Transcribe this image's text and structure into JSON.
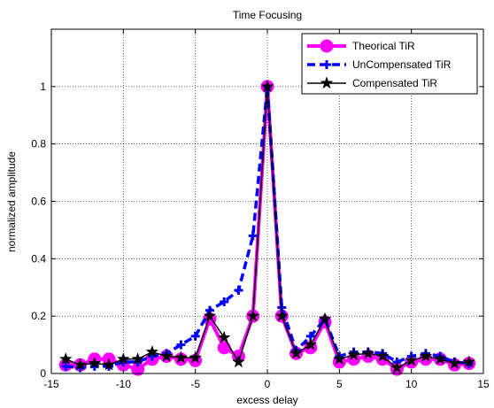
{
  "chart_data": {
    "type": "line",
    "title": "Time Focusing",
    "xlabel": "excess delay",
    "ylabel": "normalized amplitude",
    "xlim": [
      -15,
      15
    ],
    "ylim": [
      0,
      1.2
    ],
    "xticks": [
      -15,
      -10,
      -5,
      0,
      5,
      10,
      15
    ],
    "yticks": [
      0,
      0.2,
      0.4,
      0.6,
      0.8,
      1
    ],
    "grid": true,
    "legend_position": "top-right",
    "x": [
      -14,
      -13,
      -12,
      -11,
      -10,
      -9,
      -8,
      -7,
      -6,
      -5,
      -4,
      -3,
      -2,
      -1,
      0,
      1,
      2,
      3,
      4,
      5,
      6,
      7,
      8,
      9,
      10,
      11,
      12,
      13,
      14
    ],
    "series": [
      {
        "name": "Theorical TiR",
        "color": "#ff00ff",
        "style": "solid",
        "marker": "circle",
        "values": [
          0.03,
          0.03,
          0.05,
          0.05,
          0.03,
          0.015,
          0.05,
          0.06,
          0.05,
          0.045,
          0.19,
          0.09,
          0.06,
          0.2,
          1.0,
          0.2,
          0.07,
          0.09,
          0.18,
          0.04,
          0.05,
          0.06,
          0.05,
          0.015,
          0.04,
          0.05,
          0.05,
          0.03,
          0.035
        ]
      },
      {
        "name": "UnCompensated TiR",
        "color": "#0000ff",
        "style": "dashed",
        "marker": "plus",
        "values": [
          0.025,
          0.02,
          0.025,
          0.025,
          0.04,
          0.04,
          0.06,
          0.07,
          0.1,
          0.13,
          0.22,
          0.25,
          0.29,
          0.48,
          1.0,
          0.23,
          0.08,
          0.13,
          0.19,
          0.06,
          0.075,
          0.075,
          0.07,
          0.04,
          0.06,
          0.07,
          0.06,
          0.04,
          0.035
        ]
      },
      {
        "name": "Compensated TiR",
        "color": "#000000",
        "style": "solid",
        "marker": "star",
        "values": [
          0.05,
          0.03,
          0.035,
          0.03,
          0.05,
          0.05,
          0.075,
          0.06,
          0.055,
          0.055,
          0.2,
          0.125,
          0.04,
          0.2,
          1.0,
          0.2,
          0.07,
          0.1,
          0.19,
          0.05,
          0.065,
          0.07,
          0.06,
          0.02,
          0.045,
          0.06,
          0.05,
          0.035,
          0.04
        ]
      }
    ]
  }
}
